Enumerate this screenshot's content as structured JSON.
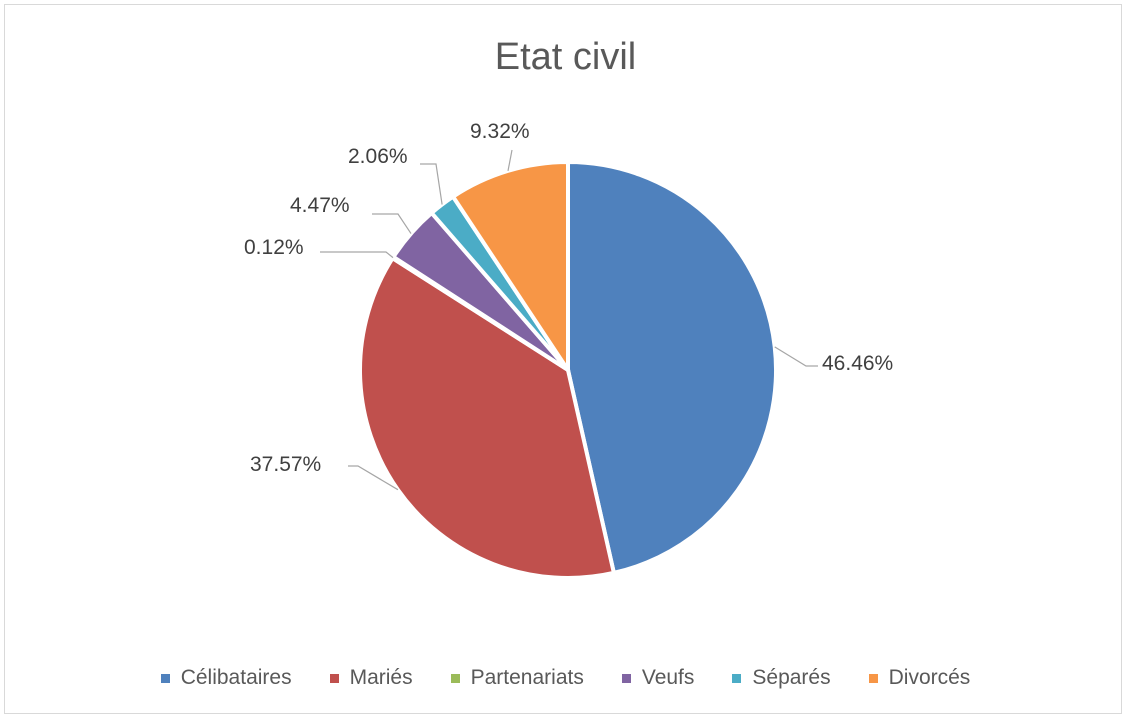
{
  "chart_data": {
    "type": "pie",
    "title": "Etat civil",
    "legend_position": "bottom",
    "categories": [
      "Célibataires",
      "Mariés",
      "Partenariats",
      "Veufs",
      "Séparés",
      "Divorcés"
    ],
    "values": [
      46.46,
      37.57,
      0.12,
      4.47,
      2.06,
      9.32
    ],
    "labels": [
      "46.46%",
      "37.57%",
      "0.12%",
      "4.47%",
      "2.06%",
      "9.32%"
    ],
    "colors": [
      "#4f81bd",
      "#c0504d",
      "#9bbb59",
      "#8064a2",
      "#4bacc6",
      "#f79646"
    ]
  }
}
